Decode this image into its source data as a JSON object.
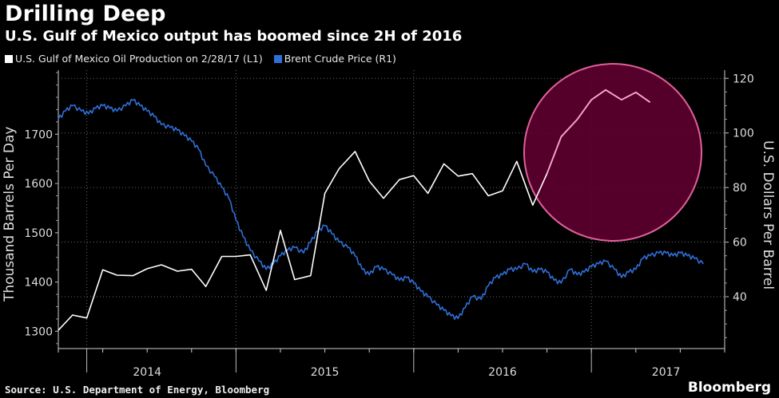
{
  "title": "Drilling Deep",
  "subtitle": "U.S. Gulf of Mexico output has boomed since 2H of 2016",
  "source": "Source: U.S. Department of Energy, Bloomberg",
  "brand": "Bloomberg",
  "colors": {
    "background": "#000000",
    "production": "#ffffff",
    "brent": "#2f6fd8",
    "highlight_fill": "#5e0030",
    "highlight_stroke": "#e0609a",
    "highlight_line": "#f4a6cf"
  },
  "chart_data": {
    "type": "line",
    "xlabel": "",
    "ylabel_left": "Thousand Barrels Per Day",
    "ylabel_right": "U.S. Dollars Per Barrel",
    "ylim_left": [
      1265,
      1830
    ],
    "ylim_right": [
      21,
      123
    ],
    "yticks_left": [
      1300,
      1400,
      1500,
      1600,
      1700
    ],
    "yticks_right": [
      40,
      60,
      80,
      100,
      120
    ],
    "xlim": [
      2013.5,
      2017.25
    ],
    "year_labels": [
      {
        "label": "2014",
        "x": 2014.0
      },
      {
        "label": "2015",
        "x": 2015.0
      },
      {
        "label": "2016",
        "x": 2016.0
      },
      {
        "label": "2017",
        "x": 2016.92
      }
    ],
    "year_boundaries": [
      2013.66,
      2014.5,
      2015.5,
      2016.5
    ],
    "grid": true,
    "highlight": "circle around 2H 2016 – early 2017 production rise",
    "series": [
      {
        "name": "U.S. Gulf of Mexico Oil Production on 2/28/17 (L1)",
        "axis": "left",
        "x": [
          2013.5,
          2013.58,
          2013.66,
          2013.75,
          2013.83,
          2013.92,
          2014.0,
          2014.08,
          2014.17,
          2014.25,
          2014.33,
          2014.42,
          2014.5,
          2014.58,
          2014.67,
          2014.75,
          2014.83,
          2014.92,
          2015.0,
          2015.08,
          2015.17,
          2015.25,
          2015.33,
          2015.42,
          2015.5,
          2015.58,
          2015.67,
          2015.75,
          2015.83,
          2015.92,
          2016.0,
          2016.08,
          2016.17,
          2016.25,
          2016.33,
          2016.42,
          2016.5,
          2016.58,
          2016.67,
          2016.75,
          2016.83
        ],
        "values": [
          1302,
          1333,
          1327,
          1425,
          1414,
          1413,
          1427,
          1435,
          1422,
          1426,
          1391,
          1452,
          1452,
          1455,
          1383,
          1505,
          1405,
          1413,
          1580,
          1630,
          1665,
          1605,
          1570,
          1608,
          1616,
          1580,
          1640,
          1615,
          1620,
          1575,
          1585,
          1645,
          1556,
          1620,
          1695,
          1730,
          1770,
          1790,
          1770,
          1785,
          1765
        ]
      },
      {
        "name": "Brent Crude Price (R1)",
        "axis": "right",
        "x": [
          2013.5,
          2013.54,
          2013.58,
          2013.63,
          2013.67,
          2013.71,
          2013.75,
          2013.79,
          2013.83,
          2013.88,
          2013.92,
          2013.96,
          2014.0,
          2014.04,
          2014.08,
          2014.13,
          2014.17,
          2014.21,
          2014.25,
          2014.29,
          2014.33,
          2014.38,
          2014.42,
          2014.46,
          2014.5,
          2014.54,
          2014.58,
          2014.63,
          2014.67,
          2014.71,
          2014.75,
          2014.79,
          2014.83,
          2014.88,
          2014.92,
          2014.96,
          2015.0,
          2015.04,
          2015.08,
          2015.13,
          2015.17,
          2015.21,
          2015.25,
          2015.29,
          2015.33,
          2015.38,
          2015.42,
          2015.46,
          2015.5,
          2015.54,
          2015.58,
          2015.63,
          2015.67,
          2015.71,
          2015.75,
          2015.79,
          2015.83,
          2015.88,
          2015.92,
          2015.96,
          2016.0,
          2016.04,
          2016.08,
          2016.13,
          2016.17,
          2016.21,
          2016.25,
          2016.29,
          2016.33,
          2016.38,
          2016.42,
          2016.46,
          2016.5,
          2016.54,
          2016.58,
          2016.63,
          2016.67,
          2016.71,
          2016.75,
          2016.79,
          2016.83,
          2016.88,
          2016.92,
          2016.96,
          2017.0,
          2017.04,
          2017.08,
          2017.13
        ],
        "values": [
          105,
          108,
          110,
          108,
          107,
          109,
          110,
          109,
          108,
          110,
          112,
          110,
          108,
          106,
          103,
          102,
          101,
          99,
          97,
          94,
          88,
          84,
          80,
          76,
          68,
          62,
          57,
          53,
          50,
          52,
          55,
          57,
          58,
          56,
          60,
          64,
          66,
          63,
          60,
          58,
          55,
          50,
          48,
          51,
          50,
          48,
          46,
          47,
          45,
          42,
          40,
          37,
          35,
          33,
          32,
          36,
          40,
          39,
          44,
          47,
          48,
          50,
          50,
          52,
          49,
          50,
          49,
          46,
          45,
          50,
          48,
          49,
          51,
          52,
          53,
          50,
          47,
          49,
          50,
          54,
          55,
          56,
          56,
          55,
          56,
          55,
          54,
          52
        ]
      }
    ]
  }
}
